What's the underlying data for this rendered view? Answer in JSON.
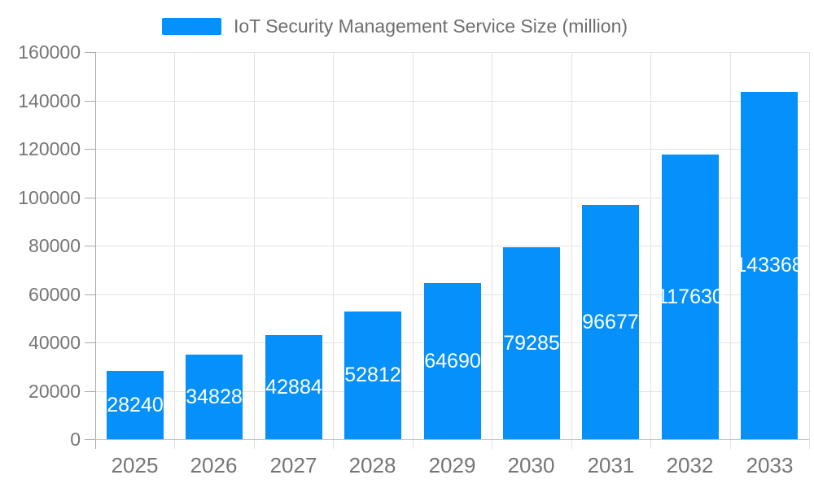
{
  "chart_data": {
    "type": "bar",
    "title": "IoT Security Management Service Size (million)",
    "categories": [
      "2025",
      "2026",
      "2027",
      "2028",
      "2029",
      "2030",
      "2031",
      "2032",
      "2033"
    ],
    "values": [
      28240,
      34828,
      42884,
      52812,
      64690,
      79285,
      96677,
      117630,
      143368
    ],
    "xlabel": "",
    "ylabel": "",
    "ylim": [
      0,
      160000
    ],
    "yticks": [
      0,
      20000,
      40000,
      60000,
      80000,
      100000,
      120000,
      140000,
      160000
    ],
    "ytick_labels": [
      "0",
      "20000",
      "40000",
      "60000",
      "80000",
      "100000",
      "120000",
      "140000",
      "160000"
    ],
    "grid": true,
    "legend_position": "top-center",
    "value_label_position": "inside-center",
    "colors": {
      "bar": "#0690fa",
      "grid": "#e3e3e3",
      "y_axis_line": "#aaaaaa",
      "x_axis_line": "#c0c0c0",
      "tick_text": "#757575",
      "value_label_text": "#ffffff",
      "legend_text": "#6e6e6e",
      "background": "#ffffff"
    }
  }
}
